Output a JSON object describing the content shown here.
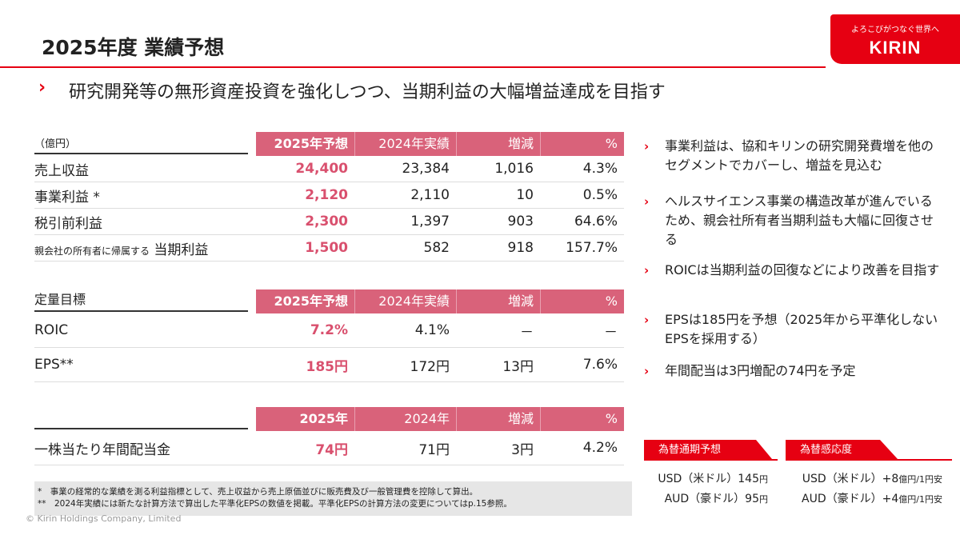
{
  "header": {
    "title": "2025年度 業績予想",
    "logo_tagline": "よろこびがつなぐ世界へ",
    "logo_brand": "KIRIN"
  },
  "subtitle": "研究開発等の無形資産投資を強化しつつ、当期利益の大幅増益達成を目指す",
  "table1": {
    "unit": "（億円）",
    "headers": [
      "2025年予想",
      "2024年実績",
      "増減",
      "%"
    ],
    "rows": [
      {
        "name": "売上収益",
        "values": [
          "24,400",
          "23,384",
          "1,016",
          "4.3%"
        ]
      },
      {
        "name": "事業利益 *",
        "values": [
          "2,120",
          "2,110",
          "10",
          "0.5%"
        ]
      },
      {
        "name": "税引前利益",
        "values": [
          "2,300",
          "1,397",
          "903",
          "64.6%"
        ]
      },
      {
        "prefix": "親会社の所有者に帰属する",
        "name": "当期利益",
        "values": [
          "1,500",
          "582",
          "918",
          "157.7%"
        ]
      }
    ]
  },
  "table2": {
    "label": "定量目標",
    "headers": [
      "2025年予想",
      "2024年実績",
      "増減",
      "%"
    ],
    "rows": [
      {
        "name": "ROIC",
        "values": [
          "7.2%",
          "4.1%",
          "－",
          "－"
        ]
      },
      {
        "name": "EPS**",
        "values": [
          "185円",
          "172円",
          "13円",
          "7.6%"
        ]
      }
    ]
  },
  "table3": {
    "headers": [
      "2025年",
      "2024年",
      "増減",
      "%"
    ],
    "rows": [
      {
        "name": "一株当たり年間配当金",
        "values": [
          "74円",
          "71円",
          "3円",
          "4.2%"
        ]
      }
    ]
  },
  "bullets": [
    "事業利益は、協和キリンの研究開発費増を他のセグメントでカバーし、増益を見込む",
    "ヘルスサイエンス事業の構造改革が進んでいるため、親会社所有者当期利益も大幅に回復させる",
    "ROICは当期利益の回復などにより改善を目指す",
    "EPSは185円を予想（2025年から平準化しないEPSを採用する）",
    "年間配当は3円増配の74円を予定"
  ],
  "fx": {
    "forecast_title": "為替通期予想",
    "sensitivity_title": "為替感応度",
    "forecast": [
      {
        "label": "USD（米ドル）",
        "value": "145",
        "unit": "円"
      },
      {
        "label": "AUD（豪ドル）",
        "value": "95",
        "unit": "円"
      }
    ],
    "sensitivity": [
      {
        "label": "USD（米ドル）",
        "value": "+8",
        "unit": "億円/1円安"
      },
      {
        "label": "AUD（豪ドル）",
        "value": "+4",
        "unit": "億円/1円安"
      }
    ]
  },
  "footnotes": [
    "*　事業の経常的な業績を測る利益指標として、売上収益から売上原価並びに販売費及び一般管理費を控除して算出。",
    "**　2024年実績には新たな計算方法で算出した平準化EPSの数値を掲載。平準化EPSの計算方法の変更についてはp.15参照。"
  ],
  "copyright": "© Kirin Holdings Company, Limited",
  "colors": {
    "accent": "#e60012",
    "header_pink": "#d9627a",
    "highlight": "#d9506e"
  }
}
